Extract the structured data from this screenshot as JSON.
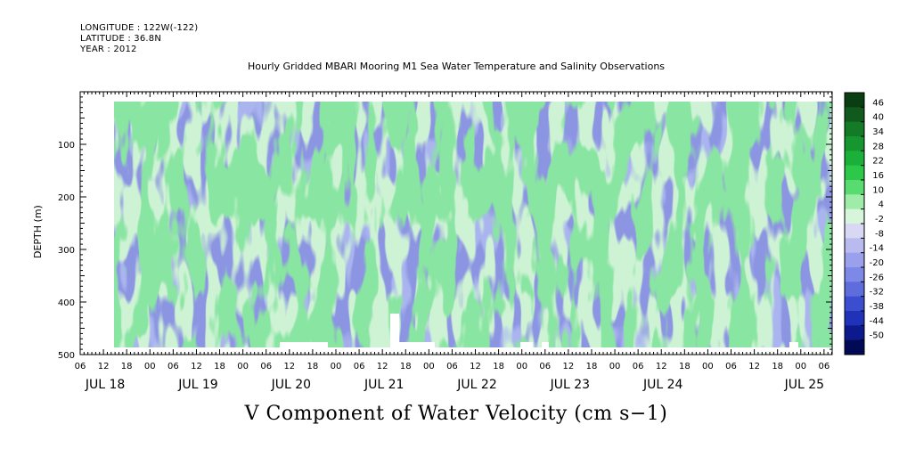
{
  "header": {
    "longitude": "LONGITUDE : 122W(-122)",
    "latitude": "LATITUDE : 36.8N",
    "year": "YEAR : 2012"
  },
  "chart_data": {
    "type": "heatmap",
    "title": "Hourly Gridded MBARI Mooring M1 Sea Water Temperature and Salinity Observations",
    "xlabel": "V Component of Water Velocity (cm s−1)",
    "ylabel": "DEPTH (m)",
    "ylim": [
      500,
      0
    ],
    "y_ticks": [
      100,
      200,
      300,
      400,
      500
    ],
    "data_depth_range": [
      20,
      485
    ],
    "hour_tick_labels": [
      "06",
      "12",
      "18",
      "00",
      "06",
      "12",
      "18",
      "00",
      "06",
      "12",
      "18",
      "00",
      "06",
      "12",
      "18",
      "00",
      "06",
      "12",
      "18",
      "00",
      "06",
      "12",
      "18",
      "00",
      "06",
      "12",
      "18",
      "00",
      "06",
      "12",
      "18",
      "00",
      "06"
    ],
    "day_labels": [
      "JUL 18",
      "JUL 19",
      "JUL 20",
      "JUL 21",
      "JUL 22",
      "JUL 23",
      "JUL 24",
      "JUL 25"
    ],
    "colorbar": {
      "labels": [
        "46",
        "40",
        "34",
        "28",
        "22",
        "16",
        "10",
        "4",
        "-2",
        "-8",
        "-14",
        "-20",
        "-26",
        "-32",
        "-38",
        "-44",
        "-50"
      ],
      "colors": [
        "#0a3d12",
        "#0f5a1c",
        "#137a26",
        "#16962f",
        "#1bb03a",
        "#2bc84a",
        "#58dc70",
        "#9eeca8",
        "#d6f5da",
        "#d8d8f4",
        "#b8baf0",
        "#9aa0ec",
        "#7e88e6",
        "#5e6cdc",
        "#3c4ed0",
        "#1f32b8",
        "#0c1a8e",
        "#030a55"
      ]
    },
    "colors": {
      "green": "#40c85c",
      "blue": "#8890e0",
      "light_blue": "#b0b6f0",
      "light_green": "#a4eab0"
    }
  }
}
